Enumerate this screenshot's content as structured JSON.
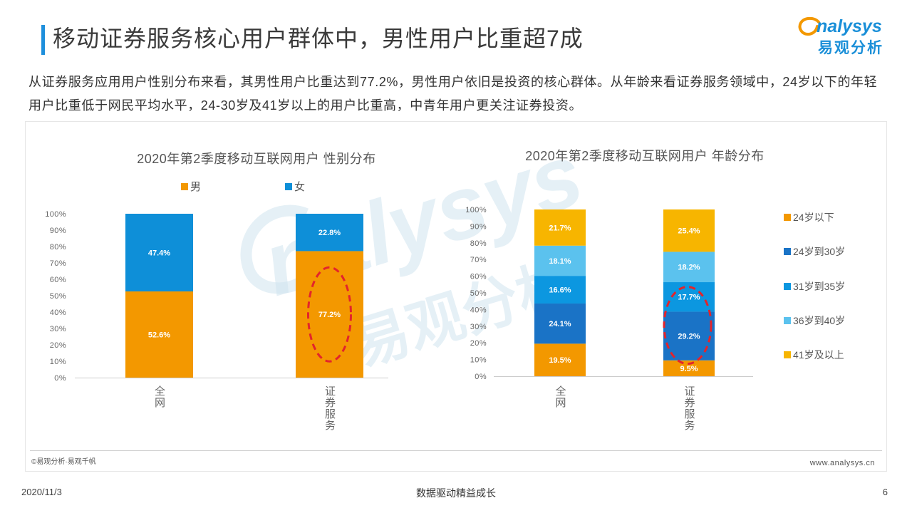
{
  "slide": {
    "title": "移动证券服务核心用户群体中，男性用户比重超7成",
    "body_lines": [
      "从证券服务应用用户性别分布来看，其男性用户比重达到77.2%，男性用户依旧是投资的核心群体。从年龄来看证券服务领域中，24岁以下的年轻",
      "用户比重低于网民平均水平，24-30岁及41岁以上的用户比重高，中青年用户更关注证券投资。"
    ],
    "source": "©易观分析·易观千帆",
    "website": "www.analysys.cn",
    "date": "2020/11/3",
    "slogan": "数据驱动精益成长",
    "page_number": "6"
  },
  "logo": {
    "word": "nalysys",
    "cn": "易观分析",
    "color": "#1a8fd8",
    "accent_color": "#f39800"
  },
  "watermark": {
    "word": "nalysys",
    "cn": "易观分析"
  },
  "colors": {
    "title_accent": "#1e8fdc",
    "highlight": "#e3242b",
    "axis": "#cccccc"
  },
  "chart_data": [
    {
      "type": "bar",
      "stacked": true,
      "title": "2020年第2季度移动互联网用户 性别分布",
      "categories": [
        "全网",
        "证券服务"
      ],
      "series": [
        {
          "name": "男",
          "values": [
            52.6,
            77.2
          ],
          "data_labels": [
            "52.6%",
            "77.2%"
          ],
          "color": "#f39800"
        },
        {
          "name": "女",
          "values": [
            47.4,
            22.8
          ],
          "data_labels": [
            "47.4%",
            "22.8%"
          ],
          "color": "#0e8fd8"
        }
      ],
      "ylim": [
        0,
        100
      ],
      "ytick_values": [
        0,
        10,
        20,
        30,
        40,
        50,
        60,
        70,
        80,
        90,
        100
      ],
      "ytick_labels": [
        "0%",
        "10%",
        "20%",
        "30%",
        "40%",
        "50%",
        "60%",
        "70%",
        "80%",
        "90%",
        "100%"
      ],
      "grid": false,
      "legend": "top",
      "highlight": {
        "category_index": 1,
        "series_index": 0
      }
    },
    {
      "type": "bar",
      "stacked": true,
      "title": "2020年第2季度移动互联网用户 年龄分布",
      "categories": [
        "全网",
        "证券服务"
      ],
      "series": [
        {
          "name": "24岁以下",
          "values": [
            19.5,
            9.5
          ],
          "data_labels": [
            "19.5%",
            "9.5%"
          ],
          "color": "#f39800"
        },
        {
          "name": "24岁到30岁",
          "values": [
            24.1,
            29.2
          ],
          "data_labels": [
            "24.1%",
            "29.2%"
          ],
          "color": "#1a73c6"
        },
        {
          "name": "31岁到35岁",
          "values": [
            16.6,
            17.7
          ],
          "data_labels": [
            "16.6%",
            "17.7%"
          ],
          "color": "#0c97e0"
        },
        {
          "name": "36岁到40岁",
          "values": [
            18.1,
            18.2
          ],
          "data_labels": [
            "18.1%",
            "18.2%"
          ],
          "color": "#5bc2ee"
        },
        {
          "name": "41岁及以上",
          "values": [
            21.7,
            25.4
          ],
          "data_labels": [
            "21.7%",
            "25.4%"
          ],
          "color": "#f7b500"
        }
      ],
      "ylim": [
        0,
        100
      ],
      "ytick_values": [
        0,
        10,
        20,
        30,
        40,
        50,
        60,
        70,
        80,
        90,
        100
      ],
      "ytick_labels": [
        "0%",
        "10%",
        "20%",
        "30%",
        "40%",
        "50%",
        "60%",
        "70%",
        "80%",
        "90%",
        "100%"
      ],
      "grid": false,
      "legend": "right",
      "highlight": {
        "category_index": 1,
        "series_index": 1
      }
    }
  ]
}
